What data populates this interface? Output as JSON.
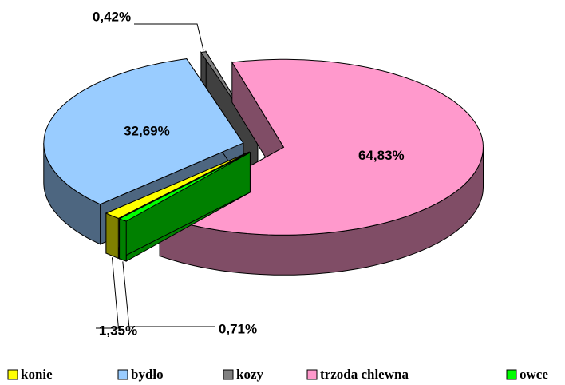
{
  "chart_data": {
    "type": "pie3d",
    "categories": [
      "konie",
      "bydło",
      "kozy",
      "trzoda chlewna",
      "owce"
    ],
    "values": [
      1.35,
      32.69,
      0.42,
      64.83,
      0.71
    ],
    "value_labels": [
      "1,35%",
      "32,69%",
      "0,42%",
      "64,83%",
      "0,71%"
    ],
    "colors": [
      "#ffff00",
      "#99ccff",
      "#808080",
      "#ff99cc",
      "#00ff00"
    ],
    "legend": "bottom"
  }
}
